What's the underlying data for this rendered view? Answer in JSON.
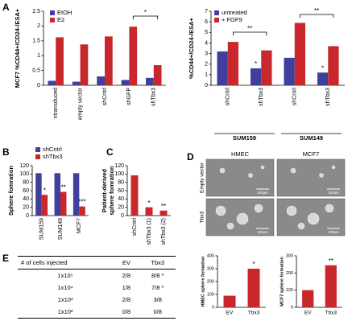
{
  "panel_labels": [
    "A",
    "B",
    "C",
    "D",
    "E"
  ],
  "chart_data": [
    {
      "type": "bar",
      "y_label": "MCF7 %CD44+/CD24-/ESA+",
      "categories": [
        "ntransduced",
        "empty vector",
        "shCntrl",
        "shGFP",
        "shTbx3"
      ],
      "series": [
        {
          "name": "EtOH",
          "color": "#3f3f9e",
          "values": [
            0.15,
            0.12,
            0.3,
            0.18,
            0.25
          ]
        },
        {
          "name": "E2",
          "color": "#c8282b",
          "values": [
            1.62,
            1.38,
            1.65,
            1.98,
            0.68
          ]
        }
      ],
      "ylim": [
        0,
        2.5
      ],
      "yticks": [
        0,
        0.5,
        1,
        1.5,
        2,
        2.5
      ],
      "bracket_annotations": [
        "*"
      ]
    },
    {
      "type": "bar",
      "y_label": "%CD44+/CD24-/ESA+",
      "categories": [
        "shCntrl",
        "shTbx3",
        "shCntrl",
        "shTbx3"
      ],
      "groups": [
        "SUM159",
        "SUM149"
      ],
      "series": [
        {
          "name": "untreated",
          "color": "#3f3f9e",
          "values": [
            3.2,
            1.6,
            2.6,
            1.2
          ],
          "annotations": [
            null,
            "*",
            null,
            "*"
          ]
        },
        {
          "name": "+ FGF9",
          "color": "#c8282b",
          "values": [
            4.1,
            3.3,
            5.9,
            3.7
          ]
        }
      ],
      "ylim": [
        0,
        7
      ],
      "yticks": [
        0,
        1,
        2,
        3,
        4,
        5,
        6,
        7
      ],
      "bracket_annotations": [
        "**",
        "**"
      ]
    },
    {
      "type": "bar",
      "y_label": "Sphere fomration",
      "categories": [
        "SUM159",
        "SUM149",
        "MCF7"
      ],
      "series": [
        {
          "name": "shCntrl",
          "color": "#3f3f9e",
          "values": [
            102,
            102,
            102
          ]
        },
        {
          "name": "shTbx3",
          "color": "#c8282b",
          "values": [
            50,
            57,
            22
          ],
          "annotations": [
            "*",
            "**",
            "***"
          ]
        }
      ],
      "ylim": [
        0,
        120
      ],
      "yticks": [
        0,
        20,
        40,
        60,
        80,
        100,
        120
      ]
    },
    {
      "type": "bar",
      "y_label": [
        "Patient-derived",
        "sphere fomration"
      ],
      "categories": [
        "shCntrl",
        "shTbx3 (1)",
        "shTbx3 (2)"
      ],
      "values": [
        97,
        20,
        12
      ],
      "color": "#c8282b",
      "annotations": [
        null,
        "*",
        "**"
      ],
      "ylim": [
        0,
        120
      ],
      "yticks": [
        0,
        20,
        40,
        60,
        80,
        100,
        120
      ]
    },
    {
      "type": "bar",
      "y_label": "HMEC sphere formation",
      "categories": [
        "EV",
        "Tbx3"
      ],
      "values": [
        90,
        300
      ],
      "color": "#c8282b",
      "annotations": [
        null,
        "*"
      ],
      "ylim": [
        0,
        400
      ],
      "yticks": [
        0,
        100,
        200,
        300,
        400
      ]
    },
    {
      "type": "bar",
      "y_label": "MCF7 sphere formation",
      "categories": [
        "EV",
        "Tbx3"
      ],
      "values": [
        100,
        245
      ],
      "color": "#c8282b",
      "annotations": [
        null,
        "**"
      ],
      "ylim": [
        0,
        300
      ],
      "yticks": [
        0,
        100,
        200,
        300
      ]
    }
  ],
  "images": {
    "columns": [
      "HMEC",
      "MCF7"
    ],
    "rows": [
      "Empty vector",
      "Tbx3"
    ],
    "scale_bar": "100µm"
  },
  "table": {
    "header": [
      "# of cells injected",
      "EV",
      "Tbx3"
    ],
    "rows": [
      [
        "1x10⁵",
        "2/8",
        "8/8 *"
      ],
      [
        "1x10⁴",
        "1/8",
        "7/8 *"
      ],
      [
        "1x10³",
        "2/8",
        "3/8"
      ],
      [
        "1x10²",
        "0/8",
        "0/8"
      ]
    ]
  }
}
